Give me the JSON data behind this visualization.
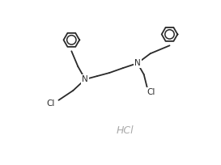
{
  "background_color": "#ffffff",
  "line_color": "#2a2a2a",
  "hcl_color": "#aaaaaa",
  "hcl_text": "HCl",
  "figsize": [
    2.73,
    2.04
  ],
  "dpi": 100,
  "bond_lw": 1.3,
  "ring_r": 0.095,
  "font_size": 7.5
}
